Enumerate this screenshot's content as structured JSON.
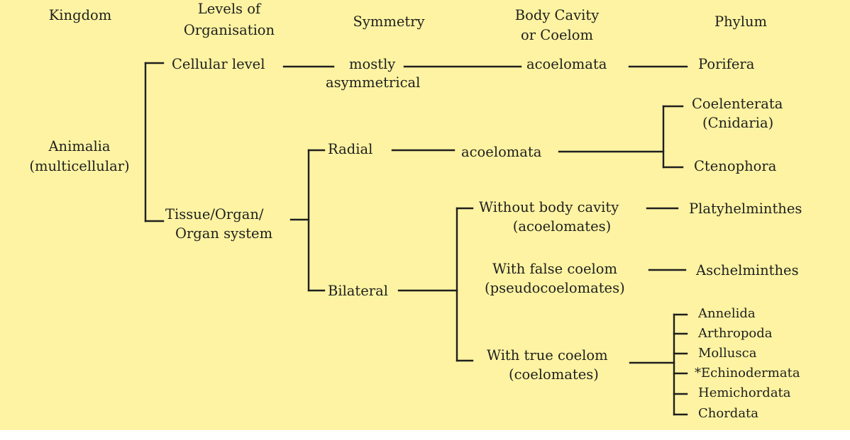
{
  "headers": {
    "kingdom": "Kingdom",
    "levels_line1": "Levels of",
    "levels_line2": "Organisation",
    "symmetry": "Symmetry",
    "cavity_line1": "Body Cavity",
    "cavity_line2": "or Coelom",
    "phylum": "Phylum"
  },
  "kingdom": {
    "line1": "Animalia",
    "line2": "(multicellular)"
  },
  "levels": {
    "cellular": "Cellular level",
    "tissue_line1": "Tissue/Organ/",
    "tissue_line2": "Organ system"
  },
  "symmetry": {
    "mostly_line1": "mostly",
    "mostly_line2": "asymmetrical",
    "radial": "Radial",
    "bilateral": "Bilateral"
  },
  "cavity": {
    "acoelomata_top": "acoelomata",
    "acoelomata_radial": "acoelomata",
    "without_line1": "Without body cavity",
    "without_line2": "(acoelomates)",
    "false_line1": "With false coelom",
    "false_line2": "(pseudocoelomates)",
    "true_line1": "With true coelom",
    "true_line2": "(coelomates)"
  },
  "phyla": {
    "porifera": "Porifera",
    "coelenterata_line1": "Coelenterata",
    "coelenterata_line2": "(Cnidaria)",
    "ctenophora": "Ctenophora",
    "platyhelminthes": "Platyhelminthes",
    "aschelminthes": "Aschelminthes",
    "coelomate_phyla": [
      "Annelida",
      "Arthropoda",
      "Mollusca",
      "*Echinodermata",
      "Hemichordata",
      "Chordata"
    ]
  },
  "colors": {
    "background": "#fdf3a2",
    "ink": "#1f1f1f"
  }
}
